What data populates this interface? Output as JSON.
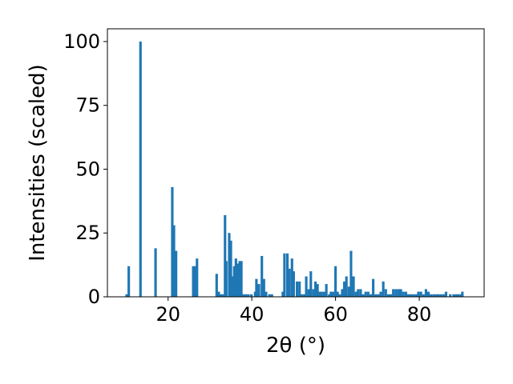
{
  "chart_data": {
    "type": "bar",
    "xlabel": "2θ (°)",
    "ylabel": "Intensities (scaled)",
    "xlim": [
      5.5,
      95.5
    ],
    "ylim": [
      0,
      105
    ],
    "xticks": [
      20,
      40,
      60,
      80
    ],
    "yticks": [
      0,
      25,
      50,
      75,
      100
    ],
    "xtick_labels": [
      "20",
      "40",
      "60",
      "80"
    ],
    "ytick_labels": [
      "0",
      "25",
      "50",
      "75",
      "100"
    ],
    "grid": false,
    "legend": "none",
    "bar_color": "#1f77b4",
    "bar_width": 0.6,
    "x": [
      10.1,
      10.6,
      13.4,
      17.0,
      21.0,
      21.4,
      21.9,
      26.0,
      26.5,
      26.9,
      31.6,
      32.1,
      32.6,
      33.0,
      33.6,
      33.9,
      34.6,
      35.0,
      35.4,
      35.8,
      36.2,
      36.6,
      37.1,
      37.5,
      38.0,
      38.6,
      39.2,
      39.9,
      40.8,
      41.1,
      41.7,
      42.4,
      42.9,
      43.4,
      44.2,
      44.8,
      47.4,
      47.8,
      48.5,
      49.0,
      49.6,
      50.0,
      50.8,
      51.4,
      51.9,
      52.5,
      53.0,
      53.6,
      54.1,
      54.7,
      55.2,
      55.7,
      56.1,
      56.6,
      57.2,
      57.8,
      58.5,
      58.9,
      59.4,
      60.0,
      60.5,
      61.0,
      61.6,
      62.1,
      62.6,
      63.2,
      63.7,
      64.3,
      64.9,
      65.4,
      66.0,
      66.6,
      67.2,
      67.8,
      68.4,
      69.0,
      69.6,
      70.2,
      70.8,
      71.4,
      72.0,
      72.6,
      73.2,
      73.8,
      74.4,
      75.0,
      75.6,
      76.2,
      76.8,
      77.4,
      78.0,
      78.6,
      79.2,
      79.8,
      80.4,
      81.0,
      81.6,
      82.2,
      82.8,
      83.4,
      84.0,
      84.6,
      85.2,
      85.8,
      86.4,
      87.4,
      88.2,
      88.8,
      89.3,
      89.9,
      90.3
    ],
    "values": [
      1,
      12,
      100,
      19,
      43,
      28,
      18,
      12,
      12,
      15,
      9,
      2,
      1,
      1,
      32,
      14,
      25,
      22,
      8,
      12,
      15,
      13,
      14,
      14,
      1,
      1,
      1,
      1,
      2,
      7,
      5,
      16,
      7,
      2,
      1,
      1,
      2,
      17,
      17,
      11,
      15,
      10,
      6,
      6,
      1,
      1,
      8,
      3,
      10,
      3,
      6,
      5,
      2,
      2,
      2,
      5,
      1,
      2,
      2,
      12,
      2,
      1,
      3,
      6,
      8,
      4,
      18,
      8,
      2,
      3,
      3,
      1,
      2,
      2,
      1,
      7,
      1,
      1,
      2,
      6,
      3,
      1,
      1,
      3,
      3,
      3,
      3,
      2,
      2,
      1,
      1,
      1,
      1,
      2,
      2,
      1,
      3,
      2,
      1,
      1,
      1,
      1,
      1,
      1,
      2,
      1,
      1,
      1,
      1,
      1,
      2
    ]
  }
}
